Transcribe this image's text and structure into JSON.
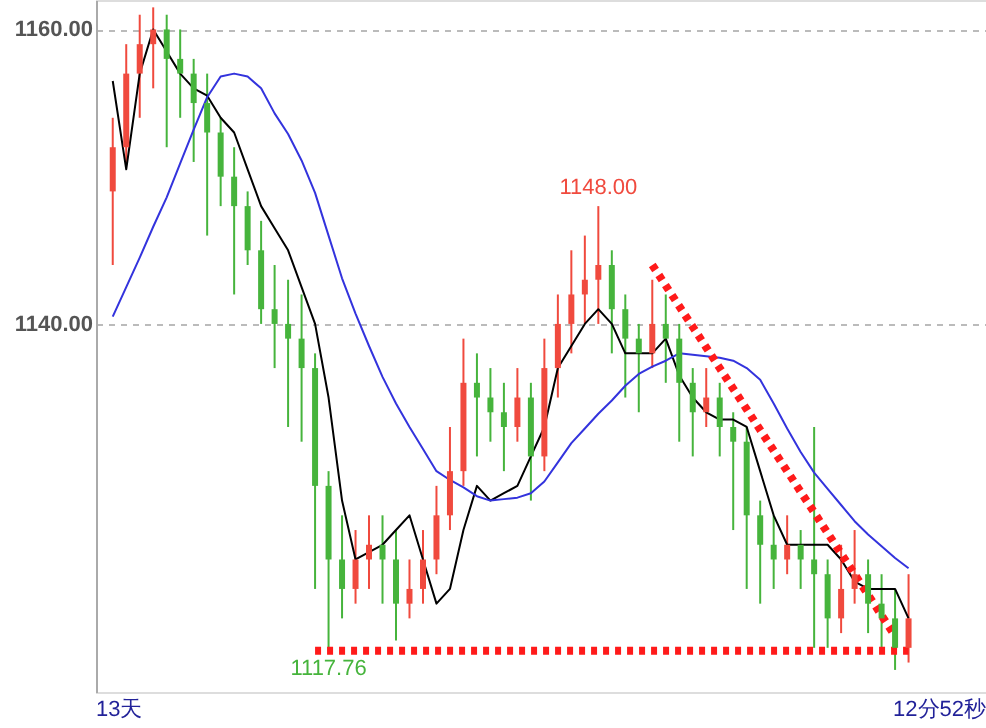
{
  "chart_data": {
    "type": "candlestick",
    "categories": [
      null,
      null,
      null,
      null,
      null,
      null,
      null,
      null,
      null,
      null,
      null,
      null,
      null,
      null,
      null,
      null,
      null,
      null,
      null,
      null,
      null,
      null,
      null,
      null,
      null,
      null,
      null,
      null,
      null,
      null,
      null,
      null,
      null,
      null,
      null,
      null,
      null,
      null,
      null,
      null,
      null,
      null,
      null,
      null,
      null,
      null,
      null,
      null,
      null,
      null,
      null,
      null,
      null,
      null,
      null,
      null,
      null,
      null,
      null,
      null
    ],
    "ohlc": [
      [
        1149,
        1154,
        1144,
        1152
      ],
      [
        1152,
        1159,
        1151,
        1157
      ],
      [
        1157,
        1161,
        1154,
        1159
      ],
      [
        1159,
        1161.5,
        1156,
        1160
      ],
      [
        1160,
        1161,
        1152,
        1158
      ],
      [
        1158,
        1160,
        1154,
        1157
      ],
      [
        1157,
        1158,
        1151,
        1155
      ],
      [
        1155,
        1157,
        1146,
        1153
      ],
      [
        1153,
        1154,
        1148,
        1150
      ],
      [
        1150,
        1152,
        1142,
        1148
      ],
      [
        1148,
        1149,
        1144,
        1145
      ],
      [
        1145,
        1147,
        1140,
        1141
      ],
      [
        1141,
        1144,
        1137,
        1140
      ],
      [
        1140,
        1143,
        1133,
        1139
      ],
      [
        1139,
        1142,
        1132,
        1137
      ],
      [
        1137,
        1138,
        1122,
        1129
      ],
      [
        1129,
        1130,
        1117.76,
        1124
      ],
      [
        1124,
        1127,
        1120,
        1122
      ],
      [
        1122,
        1126,
        1121,
        1124
      ],
      [
        1124,
        1127,
        1122,
        1125
      ],
      [
        1125,
        1127,
        1121,
        1124
      ],
      [
        1124,
        1126,
        1118.5,
        1121
      ],
      [
        1121,
        1124,
        1120,
        1122
      ],
      [
        1122,
        1126,
        1121,
        1124
      ],
      [
        1124,
        1129,
        1123,
        1127
      ],
      [
        1127,
        1133,
        1126,
        1130
      ],
      [
        1130,
        1139,
        1129,
        1136
      ],
      [
        1136,
        1138,
        1131,
        1135
      ],
      [
        1135,
        1137,
        1132,
        1134
      ],
      [
        1134,
        1136,
        1130,
        1133
      ],
      [
        1133,
        1137,
        1132,
        1135
      ],
      [
        1135,
        1136,
        1128,
        1131
      ],
      [
        1131,
        1139,
        1130,
        1137
      ],
      [
        1137,
        1142,
        1135,
        1140
      ],
      [
        1140,
        1145,
        1138,
        1142
      ],
      [
        1142,
        1146,
        1140,
        1143
      ],
      [
        1143,
        1148,
        1140,
        1144
      ],
      [
        1144,
        1145,
        1138,
        1141
      ],
      [
        1141,
        1142,
        1135,
        1139
      ],
      [
        1139,
        1140,
        1134,
        1138
      ],
      [
        1138,
        1143,
        1137,
        1140
      ],
      [
        1140,
        1142,
        1136,
        1139
      ],
      [
        1139,
        1140,
        1132,
        1136
      ],
      [
        1136,
        1137,
        1131,
        1134
      ],
      [
        1134,
        1137,
        1133,
        1135
      ],
      [
        1135,
        1136,
        1131,
        1133
      ],
      [
        1133,
        1134,
        1126,
        1132
      ],
      [
        1132,
        1133,
        1122,
        1127
      ],
      [
        1127,
        1128,
        1121,
        1125
      ],
      [
        1125,
        1127,
        1122,
        1124
      ],
      [
        1124,
        1127,
        1123,
        1125
      ],
      [
        1125,
        1126,
        1122,
        1124
      ],
      [
        1124,
        1133,
        1118,
        1123
      ],
      [
        1123,
        1124,
        1118,
        1120
      ],
      [
        1120,
        1125,
        1119,
        1122
      ],
      [
        1122,
        1126,
        1121,
        1123
      ],
      [
        1123,
        1124,
        1119,
        1121
      ],
      [
        1121,
        1123,
        1118,
        1120
      ],
      [
        1120,
        1122,
        1116.5,
        1118
      ],
      [
        1118,
        1123,
        1117,
        1120
      ]
    ],
    "colors": [
      "#f04a3e",
      "#f04a3e",
      "#f04a3e",
      "#f04a3e",
      "#46b43c",
      "#46b43c",
      "#46b43c",
      "#46b43c",
      "#46b43c",
      "#46b43c",
      "#46b43c",
      "#46b43c",
      "#46b43c",
      "#46b43c",
      "#46b43c",
      "#46b43c",
      "#46b43c",
      "#46b43c",
      "#f04a3e",
      "#f04a3e",
      "#46b43c",
      "#46b43c",
      "#f04a3e",
      "#f04a3e",
      "#f04a3e",
      "#f04a3e",
      "#f04a3e",
      "#46b43c",
      "#46b43c",
      "#46b43c",
      "#f04a3e",
      "#46b43c",
      "#f04a3e",
      "#f04a3e",
      "#f04a3e",
      "#f04a3e",
      "#f04a3e",
      "#46b43c",
      "#46b43c",
      "#46b43c",
      "#f04a3e",
      "#46b43c",
      "#46b43c",
      "#46b43c",
      "#f04a3e",
      "#46b43c",
      "#46b43c",
      "#46b43c",
      "#46b43c",
      "#46b43c",
      "#f04a3e",
      "#46b43c",
      "#46b43c",
      "#46b43c",
      "#f04a3e",
      "#f04a3e",
      "#46b43c",
      "#46b43c",
      "#46b43c",
      "#f04a3e"
    ],
    "series": [
      {
        "type": "line",
        "color": "#000000",
        "values": [
          1156.5,
          1150.5,
          1157,
          1160,
          1158.5,
          1157,
          1156,
          1155.5,
          1154,
          1153,
          1150.5,
          1148,
          1146.5,
          1145,
          1142.5,
          1140,
          1135,
          1128,
          1124,
          1124.5,
          1125,
          1126,
          1127,
          1124,
          1121,
          1122,
          1126,
          1129,
          1128,
          1128.5,
          1129,
          1131,
          1133,
          1137,
          1138.5,
          1140,
          1141,
          1140,
          1138,
          1138,
          1138,
          1139,
          1136.5,
          1135,
          1134,
          1133.5,
          1133.5,
          1133,
          1130,
          1127,
          1125,
          1125,
          1125,
          1125,
          1124,
          1122.5,
          1122,
          1122,
          1122,
          1120
        ]
      },
      {
        "type": "line",
        "color": "#3333dd",
        "values": [
          1140.5,
          1142.5,
          1144.5,
          1146.6,
          1148.6,
          1150.9,
          1153.2,
          1155.4,
          1156.8,
          1157,
          1156.8,
          1156,
          1154.3,
          1152.9,
          1151.1,
          1148.9,
          1146,
          1143.1,
          1140.7,
          1138.5,
          1136.4,
          1134.6,
          1133,
          1131.5,
          1130,
          1129.4,
          1128.9,
          1128.3,
          1128,
          1128.1,
          1128.2,
          1128.5,
          1129.3,
          1130.6,
          1131.9,
          1132.9,
          1133.9,
          1134.8,
          1135.8,
          1136.6,
          1137.1,
          1137.5,
          1138,
          1137.9,
          1137.8,
          1137.7,
          1137.5,
          1137,
          1136.2,
          1134.6,
          1132.9,
          1131.3,
          1129.9,
          1128.8,
          1127.7,
          1126.6,
          1125.7,
          1124.9,
          1124.1,
          1123.4
        ]
      },
      {
        "type": "line",
        "color": "#ff1a1a",
        "line_style": "dotted",
        "values": [
          null,
          null,
          null,
          null,
          null,
          null,
          null,
          null,
          null,
          null,
          null,
          null,
          null,
          null,
          null,
          null,
          null,
          null,
          null,
          null,
          null,
          null,
          null,
          null,
          null,
          null,
          null,
          null,
          null,
          null,
          null,
          null,
          null,
          null,
          null,
          null,
          null,
          null,
          null,
          null,
          1144,
          1142.6,
          1141.2,
          1139.8,
          1138.4,
          1137,
          1135.6,
          1134.2,
          1132.8,
          1131.4,
          1130,
          1128.6,
          1127.2,
          1125.8,
          1124.4,
          1123,
          1121.6,
          1120.2,
          1118.8,
          null
        ]
      },
      {
        "type": "line",
        "color": "#ff1a1a",
        "line_style": "dotted",
        "values": [
          null,
          null,
          null,
          null,
          null,
          null,
          null,
          null,
          null,
          null,
          null,
          null,
          null,
          null,
          null,
          1117.8,
          1117.8,
          1117.8,
          1117.8,
          1117.8,
          1117.8,
          1117.8,
          1117.8,
          1117.8,
          1117.8,
          1117.8,
          1117.8,
          1117.8,
          1117.8,
          1117.8,
          1117.8,
          1117.8,
          1117.8,
          1117.8,
          1117.8,
          1117.8,
          1117.8,
          1117.8,
          1117.8,
          1117.8,
          1117.8,
          1117.8,
          1117.8,
          1117.8,
          1117.8,
          1117.8,
          1117.8,
          1117.8,
          1117.8,
          1117.8,
          1117.8,
          1117.8,
          1117.8,
          1117.8,
          1117.8,
          1117.8,
          1117.8,
          1117.8,
          1117.8,
          1117.8
        ]
      }
    ],
    "ylim": [
      1115,
      1162
    ],
    "yticks": [
      {
        "value": 1140,
        "label": "1140.00"
      },
      {
        "value": 1160,
        "label": "1160.00"
      }
    ],
    "grid": "y",
    "tick_labels": "y",
    "annotations": [
      {
        "text": "1148.00",
        "y": 1148
      },
      {
        "text": "1117.76",
        "y": 1117.76
      },
      "13天",
      "12分52秒"
    ]
  }
}
